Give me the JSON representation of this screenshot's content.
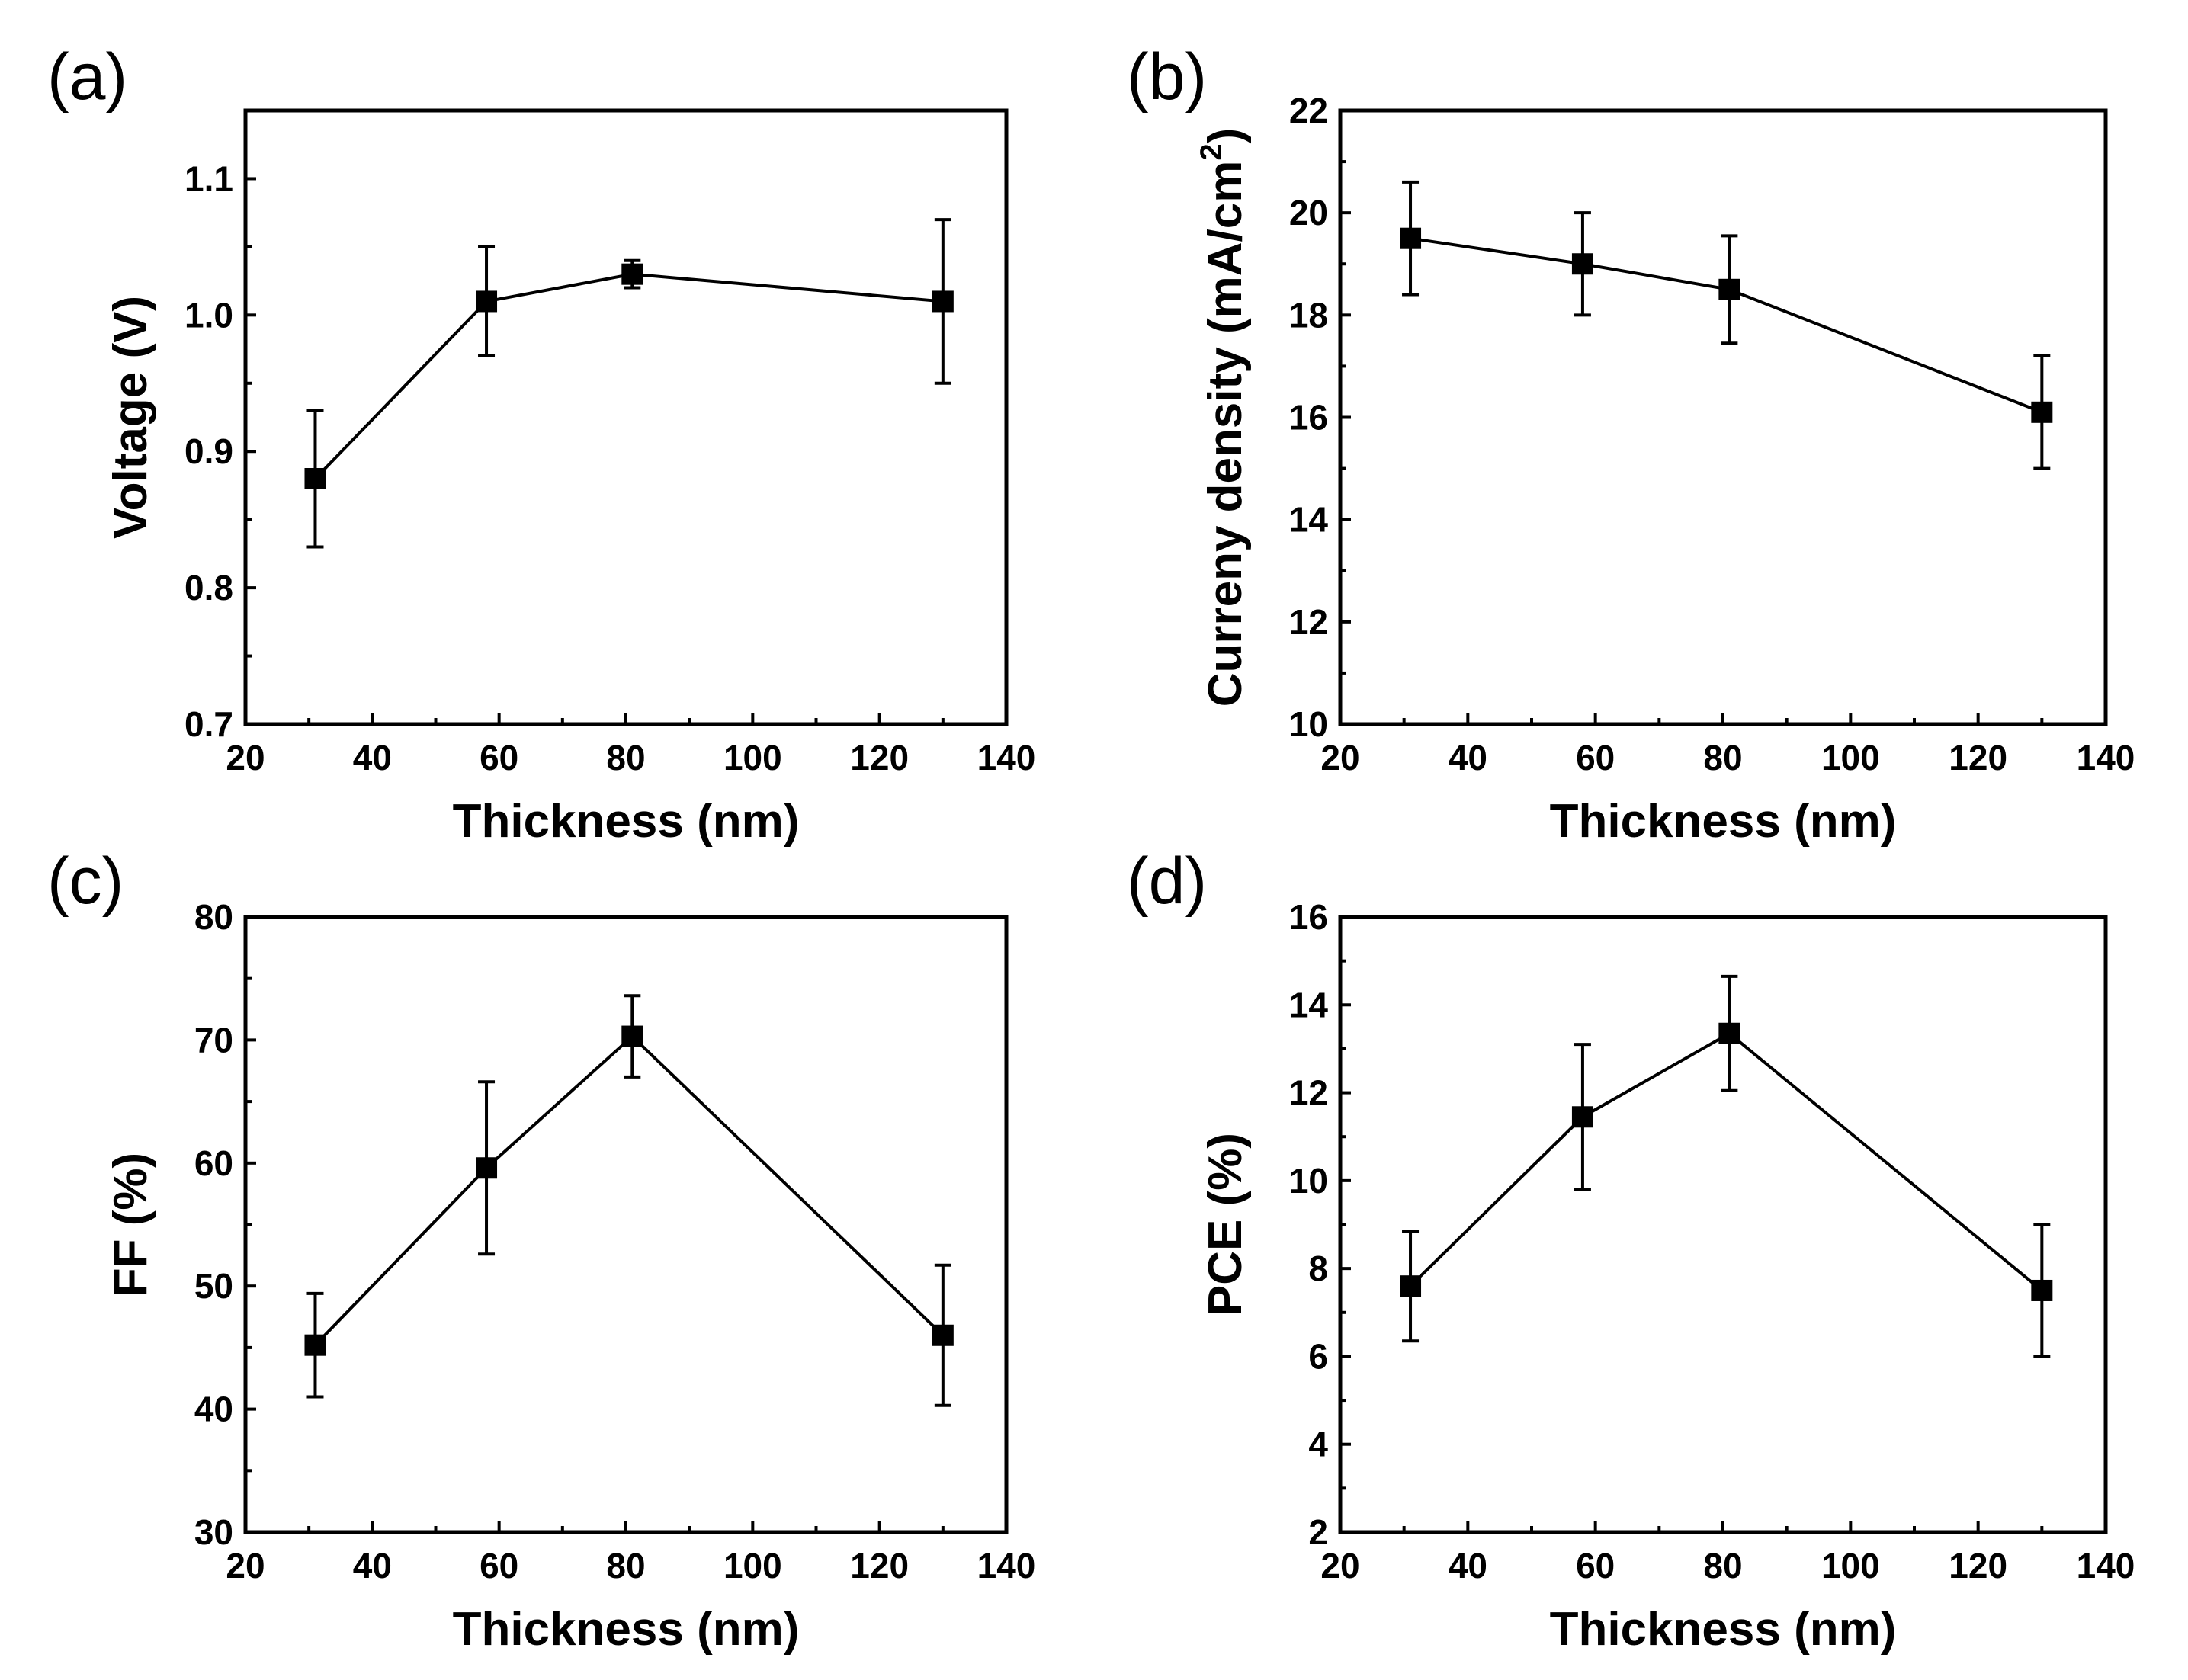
{
  "chart_data": [
    {
      "panel": "(a)",
      "type": "line",
      "xlabel": "Thickness (nm)",
      "ylabel": "Voltage (V)",
      "xlim": [
        20,
        140
      ],
      "ylim": [
        0.7,
        1.15
      ],
      "xticks": [
        20,
        40,
        60,
        80,
        100,
        120,
        140
      ],
      "yticks": [
        0.7,
        0.8,
        0.9,
        1.0,
        1.1
      ],
      "ytick_labels": [
        "0.7",
        "0.8",
        "0.9",
        "1.0",
        "1.1"
      ],
      "x": [
        31,
        58,
        81,
        130
      ],
      "y": [
        0.88,
        1.01,
        1.03,
        1.01
      ],
      "yerr": [
        0.05,
        0.04,
        0.01,
        0.06
      ]
    },
    {
      "panel": "(b)",
      "type": "line",
      "xlabel": "Thickness (nm)",
      "ylabel": "Curreny density (mA/cm",
      "ylabel_sup": "2",
      "ylabel_end": ")",
      "xlim": [
        20,
        140
      ],
      "ylim": [
        10,
        22
      ],
      "xticks": [
        20,
        40,
        60,
        80,
        100,
        120,
        140
      ],
      "yticks": [
        10,
        12,
        14,
        16,
        18,
        20,
        22
      ],
      "ytick_labels": [
        "10",
        "12",
        "14",
        "16",
        "18",
        "20",
        "22"
      ],
      "x": [
        31,
        58,
        81,
        130
      ],
      "y": [
        19.5,
        19.0,
        18.5,
        16.1
      ],
      "yerr": [
        1.1,
        1.0,
        1.05,
        1.1
      ]
    },
    {
      "panel": "(c)",
      "type": "line",
      "xlabel": "Thickness (nm)",
      "ylabel": "FF (%)",
      "xlim": [
        20,
        140
      ],
      "ylim": [
        30,
        80
      ],
      "xticks": [
        20,
        40,
        60,
        80,
        100,
        120,
        140
      ],
      "yticks": [
        30,
        40,
        50,
        60,
        70,
        80
      ],
      "ytick_labels": [
        "30",
        "40",
        "50",
        "60",
        "70",
        "80"
      ],
      "x": [
        31,
        58,
        81,
        130
      ],
      "y": [
        45.2,
        59.6,
        70.3,
        46.0
      ],
      "yerr": [
        4.2,
        7.0,
        3.3,
        5.7
      ]
    },
    {
      "panel": "(d)",
      "type": "line",
      "xlabel": "Thickness (nm)",
      "ylabel": "PCE (%)",
      "xlim": [
        20,
        140
      ],
      "ylim": [
        2,
        16
      ],
      "xticks": [
        20,
        40,
        60,
        80,
        100,
        120,
        140
      ],
      "yticks": [
        2,
        4,
        6,
        8,
        10,
        12,
        14,
        16
      ],
      "ytick_labels": [
        "2",
        "4",
        "6",
        "8",
        "10",
        "12",
        "14",
        "16"
      ],
      "x": [
        31,
        58,
        81,
        130
      ],
      "y": [
        7.6,
        11.45,
        13.35,
        7.5
      ],
      "yerr": [
        1.25,
        1.65,
        1.3,
        1.5
      ]
    }
  ]
}
